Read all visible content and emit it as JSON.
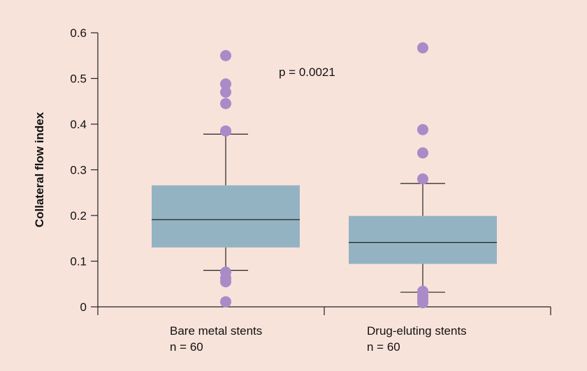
{
  "chart_data": {
    "type": "box",
    "ylabel": "Collateral flow index",
    "xlabel": "",
    "title": "",
    "ylim": [
      0,
      0.6
    ],
    "yticks": [
      "0",
      "0.1",
      "0.2",
      "0.3",
      "0.4",
      "0.5",
      "0.6"
    ],
    "annotation": "p = 0.0021",
    "grid": false,
    "categories": [
      {
        "label": "Bare metal stents",
        "n_label": "n = 60",
        "whisker_low": 0.08,
        "q1": 0.13,
        "median": 0.191,
        "q3": 0.266,
        "whisker_high": 0.378,
        "outliers": [
          0.55,
          0.488,
          0.47,
          0.445,
          0.385,
          0.076,
          0.063,
          0.055,
          0.011
        ]
      },
      {
        "label": "Drug-eluting stents",
        "n_label": "n = 60",
        "whisker_low": 0.032,
        "q1": 0.094,
        "median": 0.141,
        "q3": 0.199,
        "whisker_high": 0.27,
        "outliers": [
          0.567,
          0.388,
          0.337,
          0.28,
          0.034,
          0.025,
          0.018,
          0.012,
          0.009
        ]
      }
    ],
    "colors": {
      "background": "#f8e3db",
      "box_fill": "#93b3c2",
      "outlier": "#a98bc8",
      "line": "#222222"
    }
  }
}
